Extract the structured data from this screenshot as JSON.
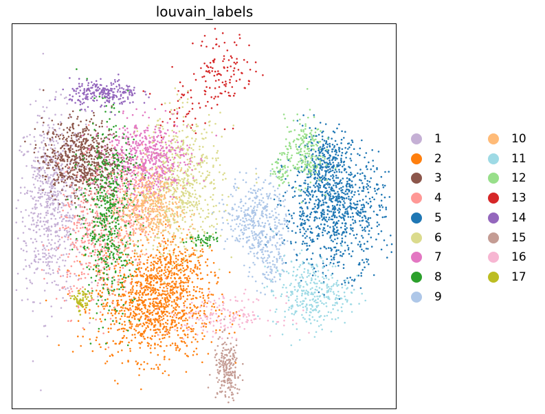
{
  "chart_data": {
    "type": "scatter",
    "title": "louvain_labels",
    "xlabel": "",
    "ylabel": "",
    "axes_ticks": false,
    "grid": false,
    "legend_placement": "right, 2 columns",
    "series": [
      {
        "name": "1",
        "color": "#c5b0d5",
        "clusters": [
          {
            "x": 0.1,
            "y": 0.53,
            "sx": 0.045,
            "sy": 0.12,
            "n": 700
          }
        ]
      },
      {
        "name": "2",
        "color": "#ff7f0e",
        "clusters": [
          {
            "x": 0.37,
            "y": 0.27,
            "sx": 0.075,
            "sy": 0.07,
            "n": 1100
          },
          {
            "x": 0.42,
            "y": 0.38,
            "sx": 0.04,
            "sy": 0.04,
            "n": 180
          }
        ]
      },
      {
        "name": "3",
        "color": "#8c564b",
        "clusters": [
          {
            "x": 0.18,
            "y": 0.65,
            "sx": 0.05,
            "sy": 0.05,
            "n": 700
          }
        ]
      },
      {
        "name": "4",
        "color": "#ff9896",
        "clusters": [
          {
            "x": 0.22,
            "y": 0.44,
            "sx": 0.05,
            "sy": 0.09,
            "n": 450
          },
          {
            "x": 0.31,
            "y": 0.52,
            "sx": 0.035,
            "sy": 0.06,
            "n": 200
          }
        ]
      },
      {
        "name": "5",
        "color": "#1f77b4",
        "clusters": [
          {
            "x": 0.84,
            "y": 0.52,
            "sx": 0.065,
            "sy": 0.08,
            "n": 900
          },
          {
            "x": 0.82,
            "y": 0.65,
            "sx": 0.03,
            "sy": 0.04,
            "n": 200
          }
        ]
      },
      {
        "name": "6",
        "color": "#dbdb8d",
        "clusters": [
          {
            "x": 0.44,
            "y": 0.58,
            "sx": 0.055,
            "sy": 0.09,
            "n": 650
          }
        ]
      },
      {
        "name": "7",
        "color": "#e377c2",
        "clusters": [
          {
            "x": 0.35,
            "y": 0.65,
            "sx": 0.055,
            "sy": 0.05,
            "n": 550
          }
        ]
      },
      {
        "name": "8",
        "color": "#2ca02c",
        "clusters": [
          {
            "x": 0.25,
            "y": 0.5,
            "sx": 0.035,
            "sy": 0.12,
            "n": 550
          },
          {
            "x": 0.49,
            "y": 0.44,
            "sx": 0.02,
            "sy": 0.008,
            "n": 40
          }
        ]
      },
      {
        "name": "9",
        "color": "#aec7e8",
        "clusters": [
          {
            "x": 0.64,
            "y": 0.5,
            "sx": 0.04,
            "sy": 0.05,
            "n": 350
          },
          {
            "x": 0.67,
            "y": 0.38,
            "sx": 0.025,
            "sy": 0.04,
            "n": 120
          }
        ]
      },
      {
        "name": "10",
        "color": "#ffbb78",
        "clusters": [
          {
            "x": 0.36,
            "y": 0.52,
            "sx": 0.04,
            "sy": 0.05,
            "n": 400
          }
        ]
      },
      {
        "name": "11",
        "color": "#9edae5",
        "clusters": [
          {
            "x": 0.78,
            "y": 0.3,
            "sx": 0.05,
            "sy": 0.045,
            "n": 320
          }
        ]
      },
      {
        "name": "12",
        "color": "#98df8a",
        "clusters": [
          {
            "x": 0.76,
            "y": 0.67,
            "sx": 0.025,
            "sy": 0.045,
            "n": 200
          },
          {
            "x": 0.7,
            "y": 0.62,
            "sx": 0.012,
            "sy": 0.02,
            "n": 50
          }
        ]
      },
      {
        "name": "13",
        "color": "#d62728",
        "clusters": [
          {
            "x": 0.55,
            "y": 0.88,
            "sx": 0.04,
            "sy": 0.05,
            "n": 120
          },
          {
            "x": 0.43,
            "y": 0.79,
            "sx": 0.03,
            "sy": 0.04,
            "n": 40
          }
        ]
      },
      {
        "name": "14",
        "color": "#9467bd",
        "clusters": [
          {
            "x": 0.24,
            "y": 0.82,
            "sx": 0.045,
            "sy": 0.018,
            "n": 230
          }
        ]
      },
      {
        "name": "15",
        "color": "#c49c94",
        "clusters": [
          {
            "x": 0.56,
            "y": 0.1,
            "sx": 0.018,
            "sy": 0.04,
            "n": 200
          }
        ]
      },
      {
        "name": "16",
        "color": "#f7b6d2",
        "clusters": [
          {
            "x": 0.55,
            "y": 0.24,
            "sx": 0.07,
            "sy": 0.025,
            "n": 160
          }
        ]
      },
      {
        "name": "17",
        "color": "#bcbd22",
        "clusters": [
          {
            "x": 0.18,
            "y": 0.28,
            "sx": 0.012,
            "sy": 0.015,
            "n": 70
          }
        ]
      }
    ]
  }
}
